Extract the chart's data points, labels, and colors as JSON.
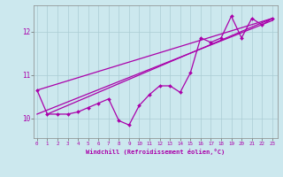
{
  "xlabel": "Windchill (Refroidissement éolien,°C)",
  "background_color": "#cce8ee",
  "grid_color": "#aaccd4",
  "line_color": "#aa00aa",
  "x_ticks": [
    0,
    1,
    2,
    3,
    4,
    5,
    6,
    7,
    8,
    9,
    10,
    11,
    12,
    13,
    14,
    15,
    16,
    17,
    18,
    19,
    20,
    21,
    22,
    23
  ],
  "y_ticks": [
    10,
    11,
    12
  ],
  "ylim": [
    9.55,
    12.6
  ],
  "xlim": [
    -0.3,
    23.5
  ],
  "data_line": [
    10.65,
    10.1,
    10.1,
    10.1,
    10.15,
    10.25,
    10.35,
    10.45,
    9.95,
    9.85,
    10.3,
    10.55,
    10.75,
    10.75,
    10.6,
    11.05,
    11.85,
    11.75,
    11.85,
    12.35,
    11.85,
    12.3,
    12.15,
    12.3
  ],
  "straight_line1": [
    [
      0,
      10.65
    ],
    [
      23,
      12.3
    ]
  ],
  "straight_line2": [
    [
      0,
      10.1
    ],
    [
      23,
      12.25
    ]
  ],
  "straight_line3": [
    [
      1,
      10.1
    ],
    [
      23,
      12.3
    ]
  ]
}
